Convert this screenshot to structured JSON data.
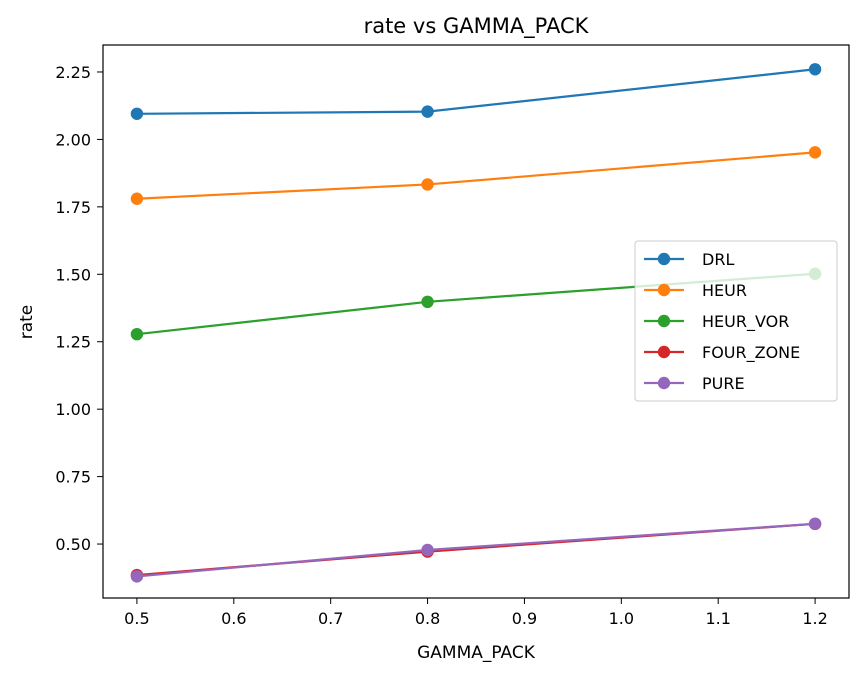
{
  "chart_data": {
    "type": "line",
    "title": "rate vs GAMMA_PACK",
    "xlabel": "GAMMA_PACK",
    "ylabel": "rate",
    "xlim": [
      0.465,
      1.235
    ],
    "ylim": [
      0.3,
      2.35
    ],
    "xticks": [
      0.5,
      0.6,
      0.7,
      0.8,
      0.9,
      1.0,
      1.1,
      1.2
    ],
    "xtick_labels": [
      "0.5",
      "0.6",
      "0.7",
      "0.8",
      "0.9",
      "1.0",
      "1.1",
      "1.2"
    ],
    "yticks": [
      0.5,
      0.75,
      1.0,
      1.25,
      1.5,
      1.75,
      2.0,
      2.25
    ],
    "ytick_labels": [
      "0.50",
      "0.75",
      "1.00",
      "1.25",
      "1.50",
      "1.75",
      "2.00",
      "2.25"
    ],
    "grid": false,
    "legend_position": "center-right",
    "x": [
      0.5,
      0.8,
      1.2
    ],
    "series": [
      {
        "name": "DRL",
        "color": "#1f77b4",
        "values": [
          2.095,
          2.103,
          2.26
        ]
      },
      {
        "name": "HEUR",
        "color": "#ff7f0e",
        "values": [
          1.78,
          1.833,
          1.952
        ]
      },
      {
        "name": "HEUR_VOR",
        "color": "#2ca02c",
        "values": [
          1.278,
          1.398,
          1.502
        ]
      },
      {
        "name": "FOUR_ZONE",
        "color": "#d62728",
        "values": [
          0.385,
          0.472,
          0.575
        ]
      },
      {
        "name": "PURE",
        "color": "#9467bd",
        "values": [
          0.38,
          0.478,
          0.575
        ]
      }
    ]
  }
}
